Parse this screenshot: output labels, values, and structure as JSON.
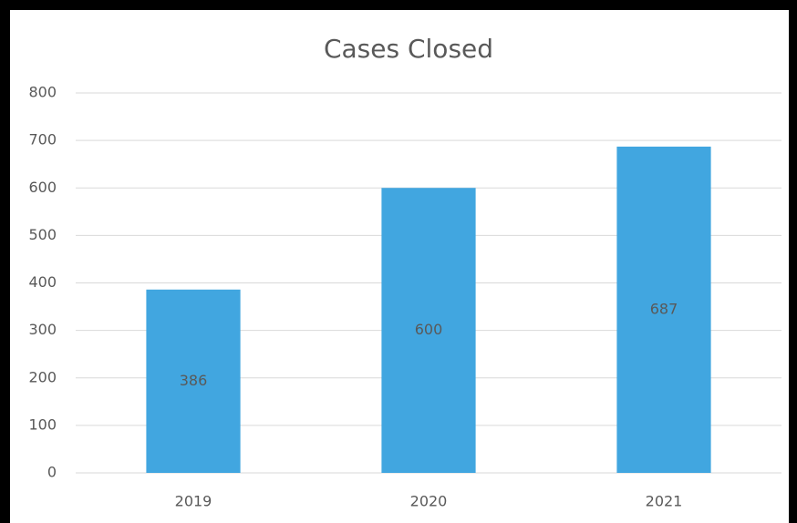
{
  "chart_data": {
    "type": "bar",
    "title": "Cases Closed",
    "categories": [
      "2019",
      "2020",
      "2021"
    ],
    "values": [
      386,
      600,
      687
    ],
    "color": "#41a6e0",
    "ylim": [
      0,
      800
    ],
    "yticks": [
      0,
      100,
      200,
      300,
      400,
      500,
      600,
      700,
      800
    ],
    "grid": true
  }
}
